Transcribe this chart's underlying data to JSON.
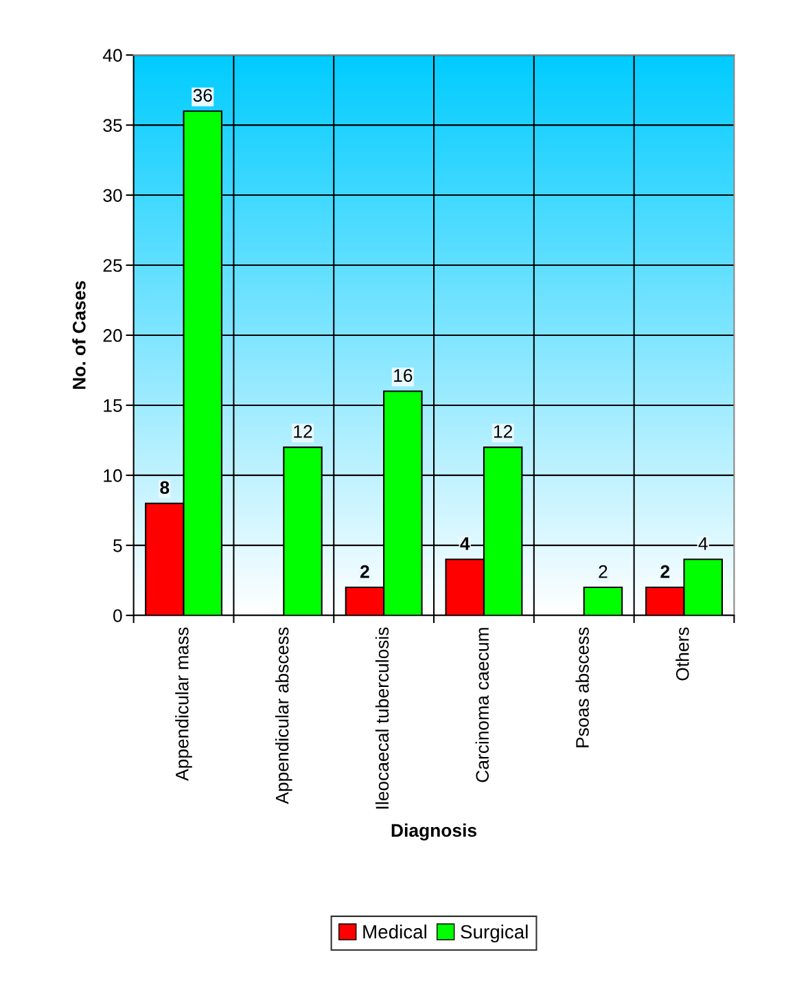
{
  "chart_data": {
    "type": "bar",
    "xlabel": "Diagnosis",
    "ylabel": "No. of Cases",
    "categories": [
      "Appendicular mass",
      "Appendicular abscess",
      "Ileocaecal tuberculosis",
      "Carcinoma caecum",
      "Psoas abscess",
      "Others"
    ],
    "series": [
      {
        "name": "Medical",
        "color": "#ff0000",
        "values": [
          8,
          null,
          2,
          4,
          null,
          2
        ],
        "value_labels": [
          "8",
          null,
          "2",
          "4",
          null,
          "2"
        ]
      },
      {
        "name": "Surgical",
        "color": "#00ff00",
        "values": [
          36,
          12,
          16,
          12,
          2,
          4
        ],
        "value_labels": [
          "36",
          "12",
          "16",
          "12",
          "2",
          "4"
        ]
      }
    ],
    "ylim": [
      0,
      40
    ],
    "yticks": [
      0,
      5,
      10,
      15,
      20,
      25,
      30,
      35,
      40
    ],
    "grid": true,
    "legend": "bottom"
  }
}
